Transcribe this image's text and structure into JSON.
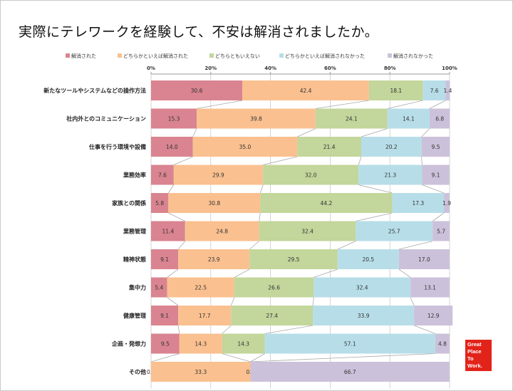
{
  "page": {
    "title": "実際にテレワークを経験して、不安は解消されましたか。"
  },
  "logo": {
    "lines": [
      "Great",
      "Place",
      "To",
      "Work."
    ],
    "color": "#e2231a"
  },
  "chart_data": {
    "type": "bar",
    "orientation": "horizontal",
    "stacked": true,
    "title": "実際にテレワークを経験して、不安は解消されましたか。",
    "categories": [
      "新たなツールやシステムなどの操作方法",
      "社内外とのコミュニケーション",
      "仕事を行う環境や設備",
      "業務効率",
      "家族との関係",
      "業務管理",
      "精神状態",
      "集中力",
      "健康管理",
      "企画・発想力",
      "その他"
    ],
    "series": [
      {
        "name": "解消された",
        "color": "#d98490",
        "values": [
          30.6,
          15.3,
          14.0,
          7.6,
          5.8,
          11.4,
          9.1,
          5.4,
          9.1,
          9.5,
          0.0
        ],
        "labels": [
          "30.6",
          "15.3",
          "14.0",
          "7.6",
          "5.8",
          "11.4",
          "9.1",
          "5.4",
          "9.1",
          "9.5",
          "0.0"
        ]
      },
      {
        "name": "どちらかといえば解消された",
        "color": "#fac090",
        "values": [
          42.4,
          39.8,
          35.0,
          29.9,
          30.8,
          24.8,
          23.9,
          22.5,
          17.7,
          14.3,
          33.3
        ],
        "labels": [
          "42.4",
          "39.8",
          "35.0",
          "29.9",
          "30.8",
          "24.8",
          "23.9",
          "22.5",
          "17.7",
          "14.3",
          "33.3"
        ]
      },
      {
        "name": "どちらともいえない",
        "color": "#c3d69b",
        "values": [
          18.1,
          24.1,
          21.4,
          32.0,
          44.2,
          32.4,
          29.5,
          26.6,
          27.4,
          14.3,
          0.0
        ],
        "labels": [
          "18.1",
          "24.1",
          "21.4",
          "32.0",
          "44.2",
          "32.4",
          "29.5",
          "26.6",
          "27.4",
          "14.3",
          "0.0"
        ]
      },
      {
        "name": "どちらかといえば解消されなかった",
        "color": "#b7dee8",
        "values": [
          7.6,
          14.1,
          20.2,
          21.3,
          17.3,
          25.7,
          20.5,
          32.4,
          33.9,
          57.1,
          0.0
        ],
        "labels": [
          "7.6",
          "14.1",
          "20.2",
          "21.3",
          "17.3",
          "25.7",
          "20.5",
          "32.4",
          "33.9",
          "57.1",
          ""
        ]
      },
      {
        "name": "解消されなかった",
        "color": "#ccc1da",
        "values": [
          1.4,
          6.8,
          9.5,
          9.1,
          1.9,
          5.7,
          17.0,
          13.1,
          12.9,
          4.8,
          66.7
        ],
        "labels": [
          "1.4",
          "6.8",
          "9.5",
          "9.1",
          "1.9",
          "5.7",
          "17.0",
          "13.1",
          "12.9",
          "4.8",
          "66.7"
        ]
      }
    ],
    "xaxis": {
      "ticks": [
        0,
        20,
        40,
        60,
        80,
        100
      ],
      "tick_labels": [
        "0%",
        "20%",
        "40%",
        "60%",
        "80%",
        "100%"
      ],
      "range": [
        0,
        100
      ]
    },
    "legend_position": "top",
    "gridlines": true,
    "series_lines": true
  }
}
